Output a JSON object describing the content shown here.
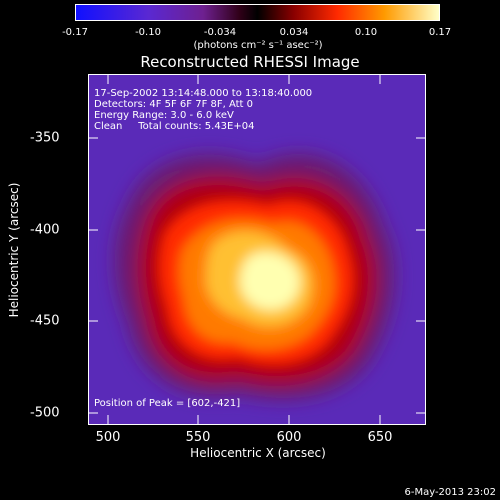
{
  "colorbar": {
    "ticks": [
      "-0.17",
      "-0.10",
      "-0.034",
      "0.034",
      "0.10",
      "0.17"
    ],
    "units": "(photons cm⁻² s⁻¹ asec⁻²)"
  },
  "title": "Reconstructed RHESSI Image",
  "info": {
    "time": "17-Sep-2002 13:14:48.000 to 13:18:40.000",
    "detectors": "Detectors: 4F 5F 6F 7F 8F, Att 0",
    "energy": "Energy Range: 3.0 - 6.0 keV",
    "clean": "Clean     Total counts: 5.43E+04",
    "peak": "Position of Peak = [602,-421]"
  },
  "axes": {
    "xlabel": "Heliocentric X (arcsec)",
    "ylabel": "Heliocentric Y (arcsec)",
    "xticks": [
      "500",
      "550",
      "600",
      "650"
    ],
    "yticks": [
      "-350",
      "-400",
      "-450",
      "-500"
    ]
  },
  "timestamp": "6-May-2013 23:02"
}
